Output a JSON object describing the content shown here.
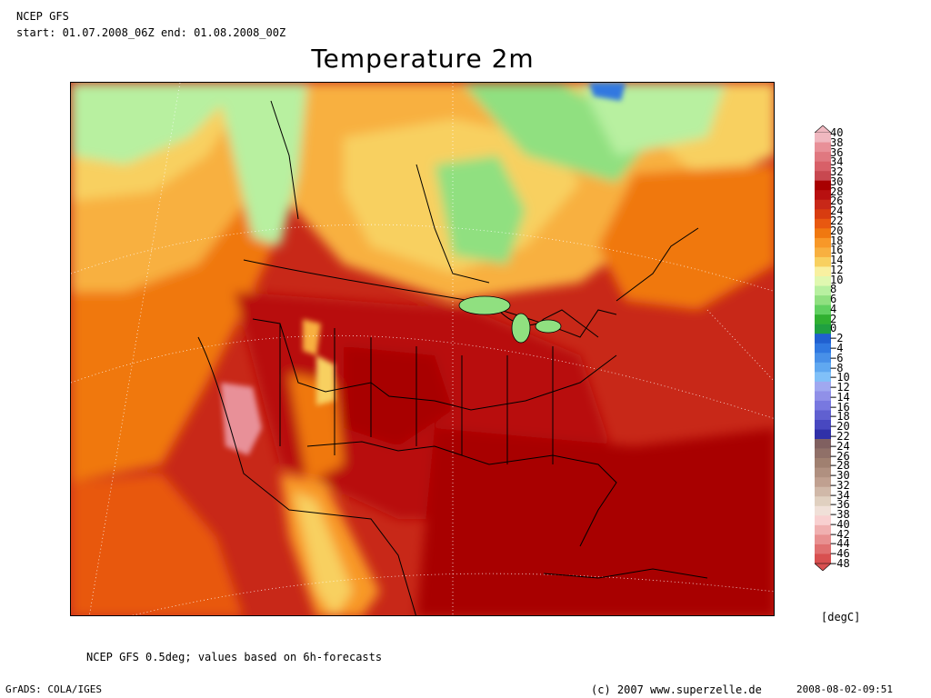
{
  "header": {
    "model": "NCEP GFS",
    "period": "start: 01.07.2008_06Z end: 01.08.2008_00Z",
    "title": "Temperature 2m"
  },
  "colorbar": {
    "unit": "[degC]",
    "levels": [
      "40",
      "38",
      "36",
      "34",
      "32",
      "30",
      "28",
      "26",
      "24",
      "22",
      "20",
      "18",
      "16",
      "14",
      "12",
      "10",
      "8",
      "6",
      "4",
      "2",
      "0",
      "-2",
      "-4",
      "-6",
      "-8",
      "-10",
      "-12",
      "-14",
      "-16",
      "-18",
      "-20",
      "-22",
      "-24",
      "-26",
      "-28",
      "-30",
      "-32",
      "-34",
      "-36",
      "-38",
      "-40",
      "-42",
      "-44",
      "-46",
      "-48"
    ],
    "colors": [
      "#f0b8c0",
      "#e89098",
      "#e07880",
      "#d86068",
      "#c84850",
      "#a80000",
      "#b81010",
      "#c82818",
      "#d83c10",
      "#e85810",
      "#f07810",
      "#f89828",
      "#f8b040",
      "#f8d060",
      "#f8f0a0",
      "#e0f8b0",
      "#b8f0a0",
      "#90e080",
      "#60d060",
      "#30b030",
      "#20a040",
      "#2060d0",
      "#3078e0",
      "#4890e8",
      "#60a8f0",
      "#80c0f8",
      "#a0a8f0",
      "#9090e8",
      "#7878e0",
      "#6060d0",
      "#4848c0",
      "#3030a8",
      "#806060",
      "#907068",
      "#a08070",
      "#b09080",
      "#c0a090",
      "#d0b8a8",
      "#e0d0c0",
      "#f0e0d8",
      "#f8d0d0",
      "#f0b0b0",
      "#e89090",
      "#e07070",
      "#d85050"
    ]
  },
  "footer": {
    "note": "NCEP GFS 0.5deg; values based on 6h-forecasts",
    "software": "GrADS: COLA/IGES",
    "copyright": "(c) 2007 www.superzelle.de",
    "timestamp": "2008-08-02-09:51"
  }
}
